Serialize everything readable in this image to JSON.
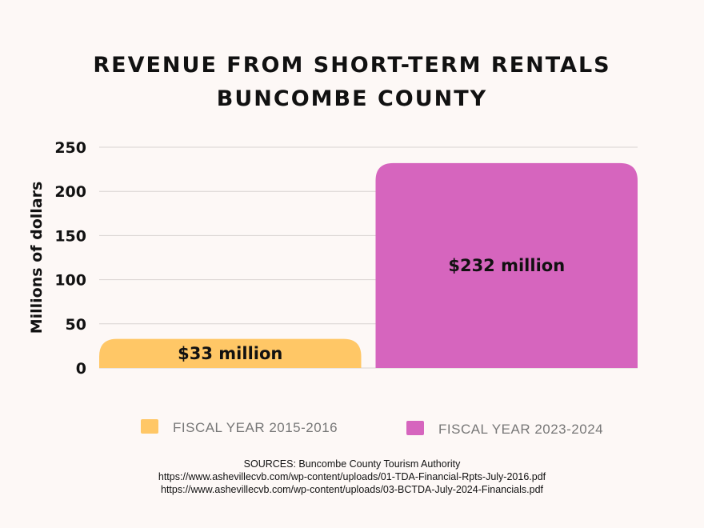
{
  "chart_data": {
    "type": "bar",
    "title": [
      "REVENUE FROM SHORT-TERM RENTALS",
      "BUNCOMBE COUNTY"
    ],
    "ylabel": "Millions of dollars",
    "ylim": [
      0,
      250
    ],
    "yticks": [
      0,
      50,
      100,
      150,
      200,
      250
    ],
    "grid": true,
    "legend_position": "bottom",
    "categories": [
      "FISCAL YEAR 2015-2016",
      "FISCAL YEAR 2023-2024"
    ],
    "values": [
      33,
      232
    ],
    "data_labels": [
      "$33 million",
      "$232 million"
    ],
    "colors": [
      "#ffc766",
      "#d665be"
    ]
  },
  "sources": {
    "line1": "SOURCES: Buncombe County Tourism Authority",
    "line2": "https://www.ashevillecvb.com/wp-content/uploads/01-TDA-Financial-Rpts-July-2016.pdf",
    "line3": "https://www.ashevillecvb.com/wp-content/uploads/03-BCTDA-July-2024-Financials.pdf"
  }
}
